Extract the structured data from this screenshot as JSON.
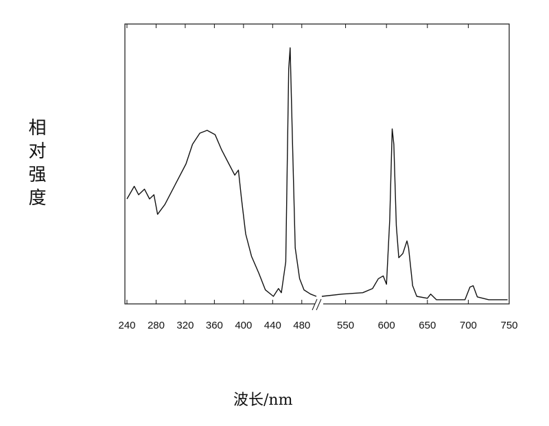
{
  "chart_data": {
    "type": "line",
    "xlabel": "波长/nm",
    "ylabel": "相对强度",
    "xlim": [
      240,
      750
    ],
    "x_break": [
      500,
      521
    ],
    "ylim": [
      0,
      100
    ],
    "xticks": [
      240,
      280,
      320,
      360,
      400,
      440,
      480,
      550,
      600,
      650,
      700,
      750
    ],
    "series": [
      {
        "color": "#111111",
        "x": [
          240,
          250,
          256,
          264,
          271,
          277,
          282,
          292,
          307,
          321,
          330,
          340,
          350,
          361,
          370,
          380,
          388,
          393,
          397,
          403,
          411,
          421,
          430,
          441,
          448,
          452,
          458,
          462,
          464,
          467,
          471,
          477,
          483,
          492,
          500,
          null,
          521,
          546,
          571,
          583,
          590,
          596,
          600,
          604,
          607,
          609,
          612,
          615,
          620,
          625,
          627,
          632,
          637,
          650,
          654,
          661,
          696,
          702,
          706,
          711,
          725,
          748
        ],
        "values": [
          37.5,
          42,
          39,
          41,
          37.5,
          39,
          32,
          35.5,
          43,
          50,
          57,
          61,
          62,
          60.5,
          55,
          50,
          46,
          47.8,
          38,
          25,
          17,
          11,
          5,
          2.7,
          5.5,
          4,
          15,
          84,
          91.5,
          60,
          20,
          9,
          5,
          3.5,
          2.7,
          null,
          2.7,
          3.5,
          4,
          5.5,
          9,
          10,
          7,
          30,
          62.5,
          57,
          28,
          16.5,
          18,
          22.5,
          20,
          6.5,
          2.7,
          2,
          3.5,
          1.5,
          1.5,
          6,
          6.5,
          2.5,
          1.5,
          1.5
        ]
      }
    ]
  }
}
